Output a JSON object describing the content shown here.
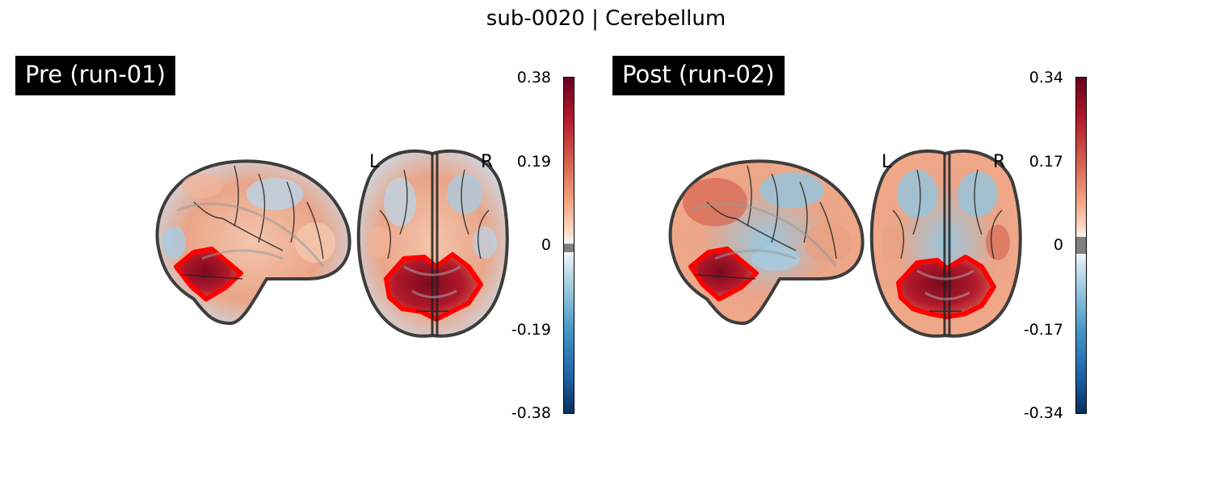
{
  "title": "sub-0020 | Cerebellum",
  "panels": [
    {
      "label": "Pre (run-01)",
      "orientation_left": "L",
      "orientation_right": "R",
      "colorbar": {
        "max": 0.38,
        "min": -0.38,
        "ticks": [
          "0.38",
          "0.19",
          "0",
          "-0.19",
          "-0.38"
        ],
        "colormap": "RdBu_r"
      }
    },
    {
      "label": "Post (run-02)",
      "orientation_left": "L",
      "orientation_right": "R",
      "colorbar": {
        "max": 0.34,
        "min": -0.34,
        "ticks": [
          "0.34",
          "0.17",
          "0",
          "-0.17",
          "-0.34"
        ],
        "colormap": "RdBu_r"
      }
    }
  ],
  "colors": {
    "roi_outline": "#ff0000",
    "brain_outline": "#333333",
    "positive": "#b2182b",
    "negative": "#2166ac",
    "background": "#ffffff"
  }
}
